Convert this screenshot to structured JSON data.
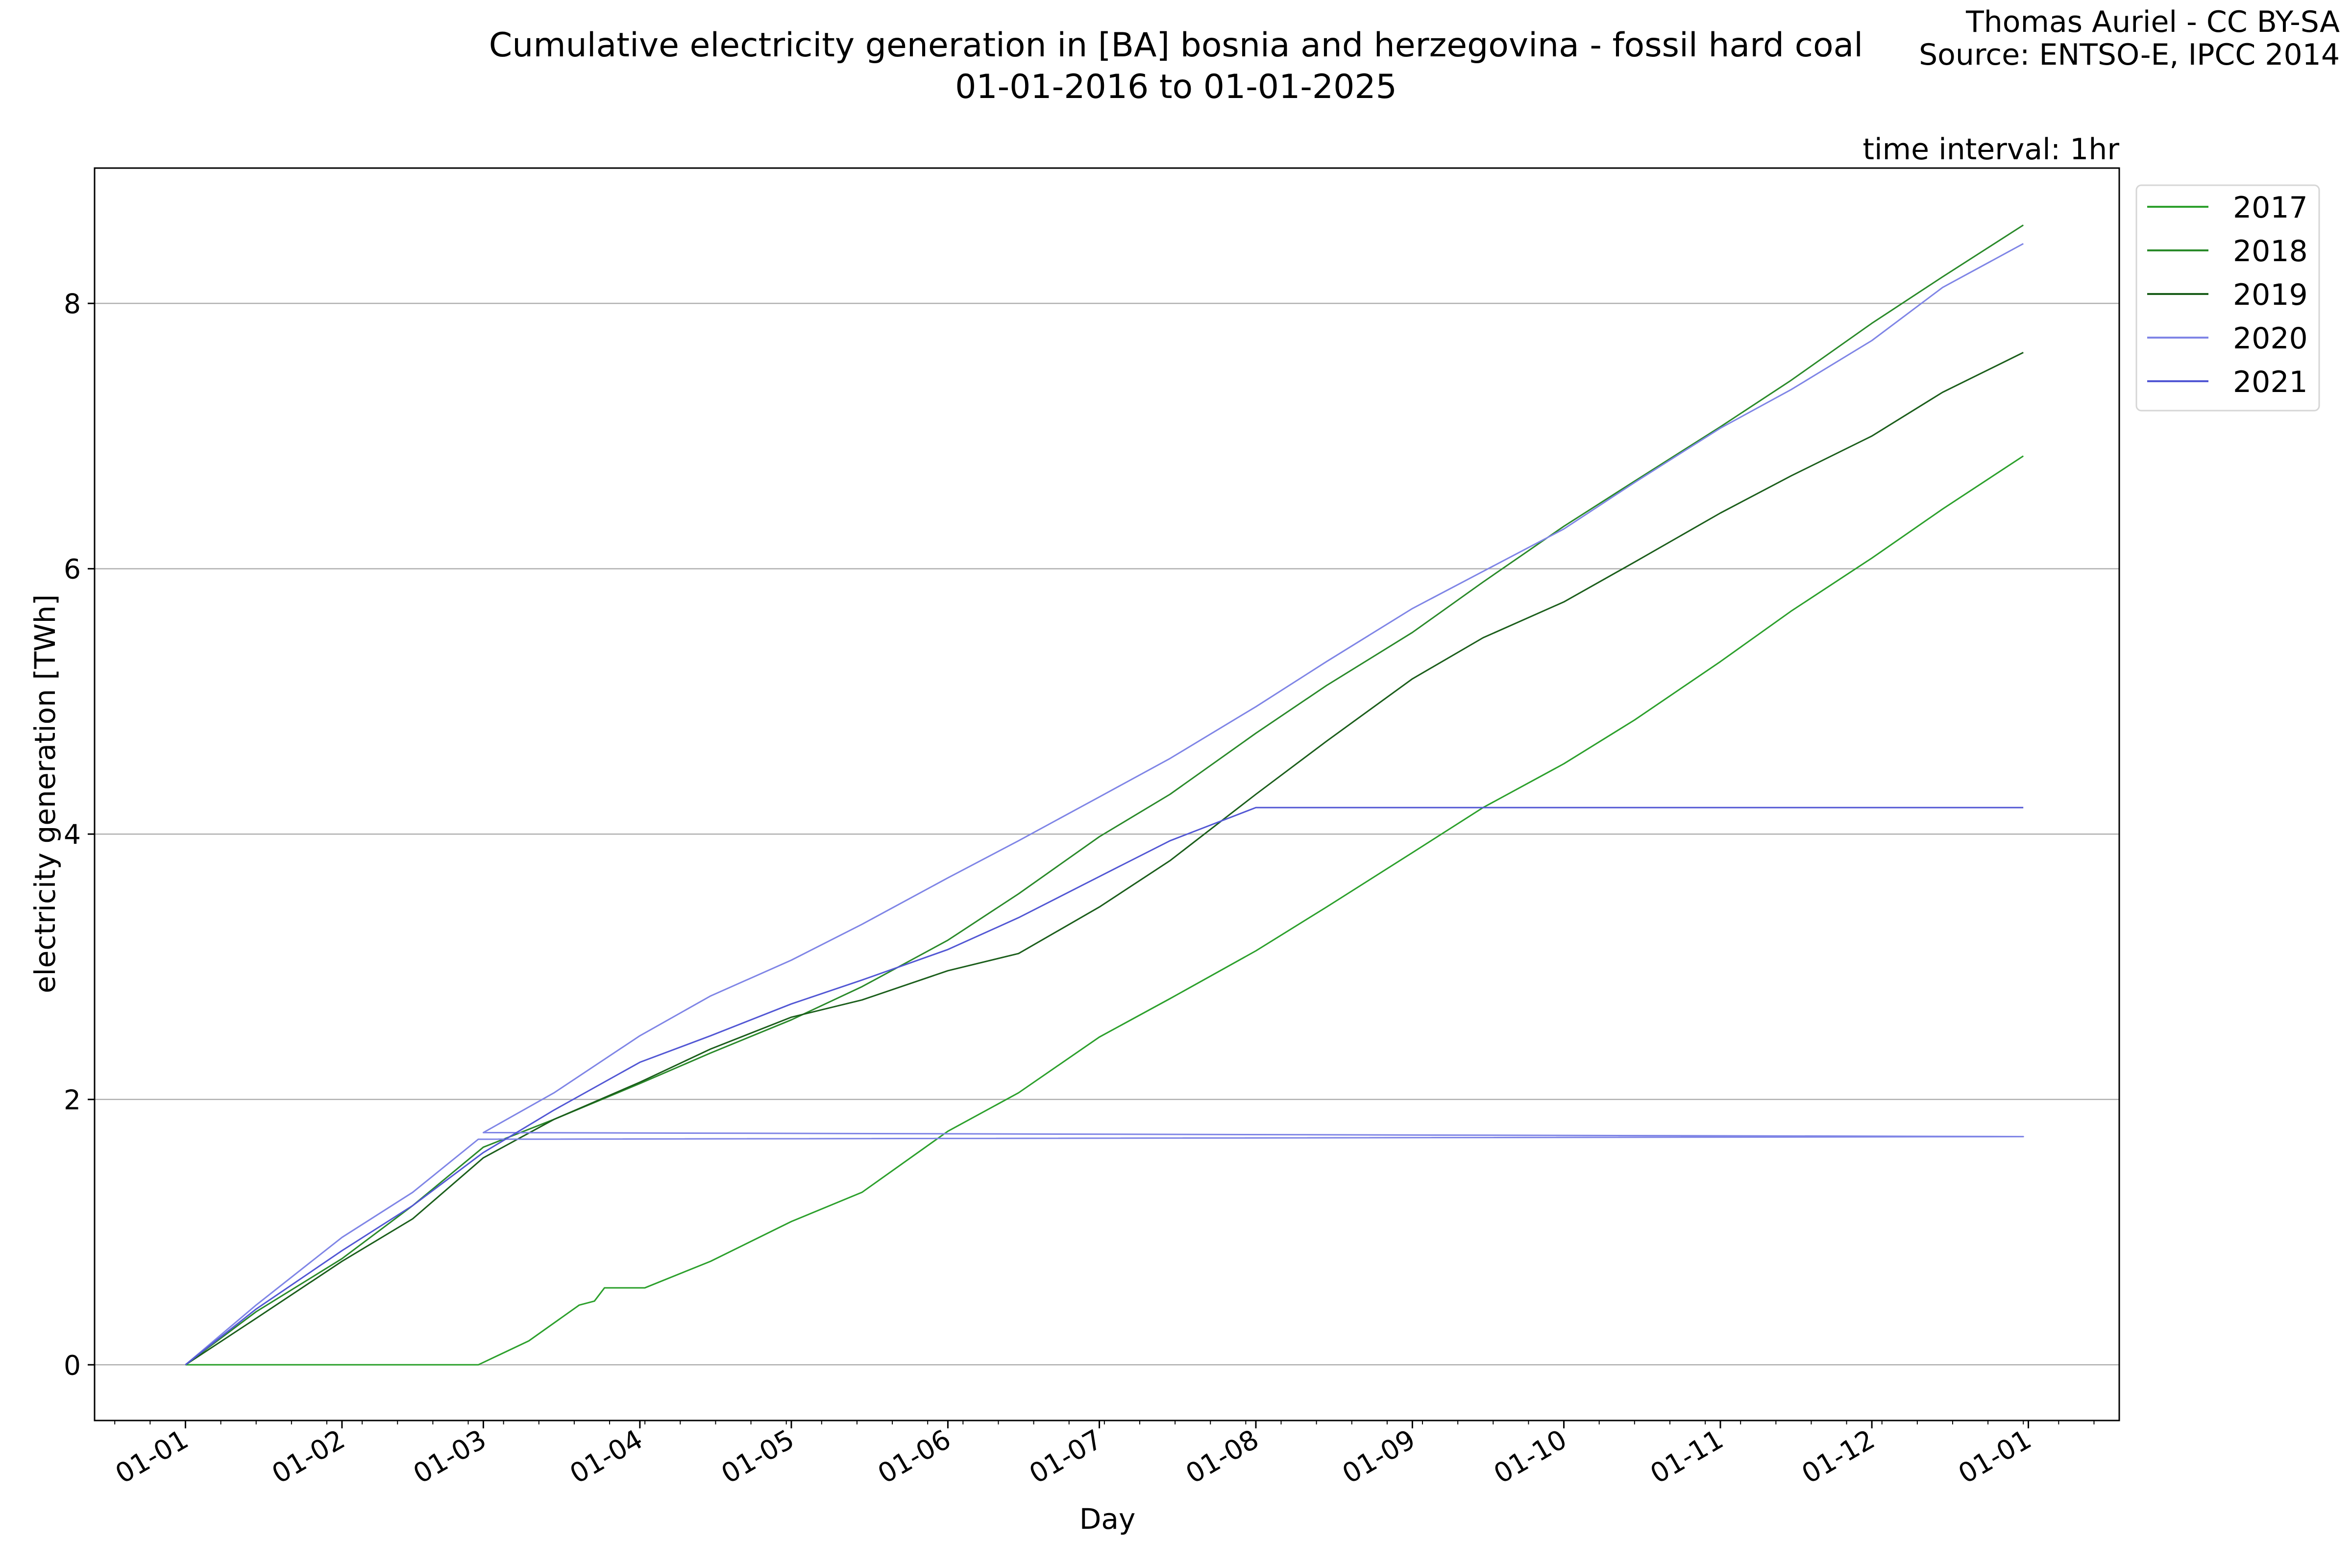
{
  "header": {
    "title_line1": "Cumulative electricity generation in [BA] bosnia and herzegovina - fossil hard coal",
    "title_line2": "01-01-2016 to 01-01-2025",
    "credit_line1": "Thomas Auriel - CC BY-SA",
    "credit_line2": "Source: ENTSO-E, IPCC 2014",
    "interval": "time interval: 1hr"
  },
  "chart_data": {
    "type": "line",
    "title": "Cumulative electricity generation in [BA] bosnia and herzegovina - fossil hard coal",
    "subtitle": "01-01-2016 to 01-01-2025",
    "xlabel": "Day",
    "ylabel": "electricity generation [TWh]",
    "xlim": [
      "12-14",
      "01-18"
    ],
    "ylim": [
      -0.42,
      9.02
    ],
    "grid": "horizontal",
    "legend_position": "outside-top-right",
    "x_tick_labels": [
      "01-01",
      "01-02",
      "01-03",
      "01-04",
      "01-05",
      "01-06",
      "01-07",
      "01-08",
      "01-09",
      "01-10",
      "01-11",
      "01-12",
      "01-01"
    ],
    "y_ticks": [
      0,
      2,
      4,
      6,
      8
    ],
    "series": [
      {
        "name": "2017",
        "color": "#2ca02c",
        "points": [
          [
            "01-01",
            0
          ],
          [
            "02-28",
            0
          ],
          [
            "03-10",
            0.18
          ],
          [
            "03-20",
            0.45
          ],
          [
            "03-23",
            0.48
          ],
          [
            "03-25",
            0.58
          ],
          [
            "04-02",
            0.58
          ],
          [
            "04-15",
            0.78
          ],
          [
            "05-01",
            1.08
          ],
          [
            "05-15",
            1.3
          ],
          [
            "06-01",
            1.76
          ],
          [
            "06-15",
            2.05
          ],
          [
            "07-01",
            2.47
          ],
          [
            "07-15",
            2.76
          ],
          [
            "08-01",
            3.12
          ],
          [
            "08-15",
            3.45
          ],
          [
            "09-01",
            3.86
          ],
          [
            "09-15",
            4.2
          ],
          [
            "10-01",
            4.53
          ],
          [
            "10-15",
            4.86
          ],
          [
            "11-01",
            5.3
          ],
          [
            "11-15",
            5.68
          ],
          [
            "12-01",
            6.08
          ],
          [
            "12-15",
            6.45
          ],
          [
            "12-31",
            6.85
          ]
        ]
      },
      {
        "name": "2018",
        "color": "#2a8a2a",
        "points": [
          [
            "01-01",
            0
          ],
          [
            "01-15",
            0.4
          ],
          [
            "02-01",
            0.8
          ],
          [
            "02-15",
            1.2
          ],
          [
            "03-01",
            1.64
          ],
          [
            "03-15",
            1.85
          ],
          [
            "04-01",
            2.12
          ],
          [
            "04-15",
            2.35
          ],
          [
            "05-01",
            2.6
          ],
          [
            "05-15",
            2.85
          ],
          [
            "06-01",
            3.2
          ],
          [
            "06-15",
            3.55
          ],
          [
            "07-01",
            3.98
          ],
          [
            "07-15",
            4.3
          ],
          [
            "08-01",
            4.76
          ],
          [
            "08-15",
            5.12
          ],
          [
            "09-01",
            5.52
          ],
          [
            "09-15",
            5.9
          ],
          [
            "10-01",
            6.32
          ],
          [
            "10-15",
            6.66
          ],
          [
            "11-01",
            7.07
          ],
          [
            "11-15",
            7.42
          ],
          [
            "12-01",
            7.85
          ],
          [
            "12-15",
            8.2
          ],
          [
            "12-31",
            8.59
          ]
        ]
      },
      {
        "name": "2019",
        "color": "#1b5e1b",
        "points": [
          [
            "01-01",
            0
          ],
          [
            "01-15",
            0.35
          ],
          [
            "02-01",
            0.78
          ],
          [
            "02-15",
            1.1
          ],
          [
            "03-01",
            1.56
          ],
          [
            "03-15",
            1.85
          ],
          [
            "04-01",
            2.13
          ],
          [
            "04-15",
            2.38
          ],
          [
            "05-01",
            2.62
          ],
          [
            "05-15",
            2.75
          ],
          [
            "06-01",
            2.97
          ],
          [
            "06-15",
            3.1
          ],
          [
            "07-01",
            3.45
          ],
          [
            "07-15",
            3.8
          ],
          [
            "08-01",
            4.3
          ],
          [
            "08-15",
            4.7
          ],
          [
            "09-01",
            5.17
          ],
          [
            "09-15",
            5.48
          ],
          [
            "10-01",
            5.75
          ],
          [
            "10-15",
            6.05
          ],
          [
            "11-01",
            6.42
          ],
          [
            "11-15",
            6.7
          ],
          [
            "12-01",
            7.0
          ],
          [
            "12-15",
            7.33
          ],
          [
            "12-31",
            7.63
          ]
        ]
      },
      {
        "name": "2020",
        "color": "#7f85e6",
        "points": [
          [
            "01-01",
            0
          ],
          [
            "01-15",
            0.45
          ],
          [
            "02-01",
            0.96
          ],
          [
            "02-15",
            1.3
          ],
          [
            "02-28",
            1.7
          ],
          [
            "12-31",
            1.72
          ],
          [
            "03-01",
            1.75
          ],
          [
            "03-15",
            2.05
          ],
          [
            "04-01",
            2.48
          ],
          [
            "04-15",
            2.78
          ],
          [
            "05-01",
            3.05
          ],
          [
            "05-15",
            3.32
          ],
          [
            "06-01",
            3.67
          ],
          [
            "06-15",
            3.95
          ],
          [
            "07-01",
            4.28
          ],
          [
            "07-15",
            4.57
          ],
          [
            "08-01",
            4.96
          ],
          [
            "08-15",
            5.3
          ],
          [
            "09-01",
            5.7
          ],
          [
            "09-15",
            5.98
          ],
          [
            "10-01",
            6.3
          ],
          [
            "10-15",
            6.65
          ],
          [
            "11-01",
            7.06
          ],
          [
            "11-15",
            7.35
          ],
          [
            "12-01",
            7.72
          ],
          [
            "12-15",
            8.12
          ],
          [
            "12-31",
            8.45
          ]
        ]
      },
      {
        "name": "2021",
        "color": "#5257d4",
        "points": [
          [
            "01-01",
            0
          ],
          [
            "01-15",
            0.42
          ],
          [
            "02-01",
            0.86
          ],
          [
            "02-15",
            1.2
          ],
          [
            "03-01",
            1.6
          ],
          [
            "03-15",
            1.92
          ],
          [
            "04-01",
            2.28
          ],
          [
            "04-15",
            2.48
          ],
          [
            "05-01",
            2.72
          ],
          [
            "05-15",
            2.9
          ],
          [
            "06-01",
            3.13
          ],
          [
            "06-15",
            3.37
          ],
          [
            "07-01",
            3.68
          ],
          [
            "07-15",
            3.95
          ],
          [
            "08-01",
            4.2
          ],
          [
            "12-31",
            4.2
          ]
        ]
      }
    ]
  }
}
